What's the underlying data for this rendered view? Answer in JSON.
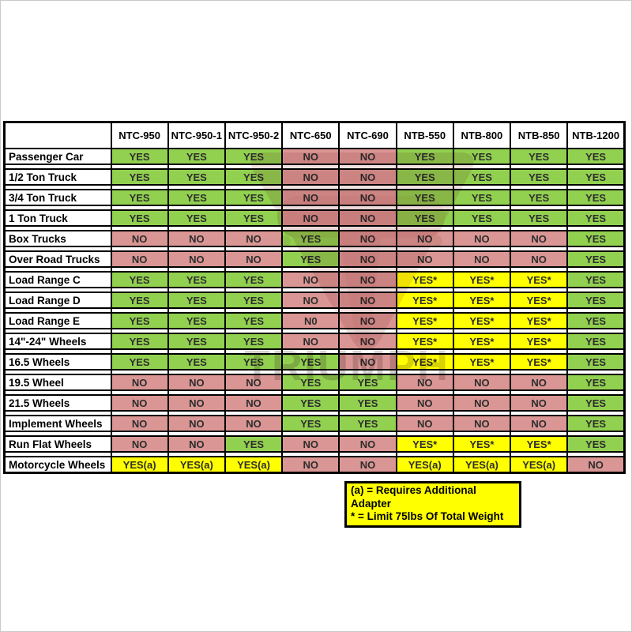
{
  "chart_data": {
    "type": "table",
    "title": "",
    "columns": [
      "NTC-950",
      "NTC-950-1",
      "NTC-950-2",
      "NTC-650",
      "NTC-690",
      "NTB-550",
      "NTB-800",
      "NTB-850",
      "NTB-1200"
    ],
    "rows": [
      {
        "label": "Passenger Car",
        "values": [
          "YES",
          "YES",
          "YES",
          "NO",
          "NO",
          "YES",
          "YES",
          "YES",
          "YES"
        ]
      },
      {
        "label": "1/2 Ton Truck",
        "values": [
          "YES",
          "YES",
          "YES",
          "NO",
          "NO",
          "YES",
          "YES",
          "YES",
          "YES"
        ]
      },
      {
        "label": "3/4 Ton Truck",
        "values": [
          "YES",
          "YES",
          "YES",
          "NO",
          "NO",
          "YES",
          "YES",
          "YES",
          "YES"
        ]
      },
      {
        "label": "1 Ton Truck",
        "values": [
          "YES",
          "YES",
          "YES",
          "NO",
          "NO",
          "YES",
          "YES",
          "YES",
          "YES"
        ]
      },
      {
        "label": "Box Trucks",
        "values": [
          "NO",
          "NO",
          "NO",
          "YES",
          "NO",
          "NO",
          "NO",
          "NO",
          "YES"
        ]
      },
      {
        "label": "Over Road Trucks",
        "values": [
          "NO",
          "NO",
          "NO",
          "YES",
          "NO",
          "NO",
          "NO",
          "NO",
          "YES"
        ]
      },
      {
        "label": "Load Range C",
        "values": [
          "YES",
          "YES",
          "YES",
          "NO",
          "NO",
          "YES*",
          "YES*",
          "YES*",
          "YES"
        ]
      },
      {
        "label": "Load Range D",
        "values": [
          "YES",
          "YES",
          "YES",
          "NO",
          "NO",
          "YES*",
          "YES*",
          "YES*",
          "YES"
        ]
      },
      {
        "label": "Load Range E",
        "values": [
          "YES",
          "YES",
          "YES",
          "N0",
          "NO",
          "YES*",
          "YES*",
          "YES*",
          "YES"
        ]
      },
      {
        "label": "14\"-24\" Wheels",
        "values": [
          "YES",
          "YES",
          "YES",
          "NO",
          "NO",
          "YES*",
          "YES*",
          "YES*",
          "YES"
        ]
      },
      {
        "label": "16.5 Wheels",
        "values": [
          "YES",
          "YES",
          "YES",
          "YES",
          "NO",
          "YES*",
          "YES*",
          "YES*",
          "YES"
        ]
      },
      {
        "label": "19.5 Wheel",
        "values": [
          "NO",
          "NO",
          "NO",
          "YES",
          "YES",
          "NO",
          "NO",
          "NO",
          "YES"
        ]
      },
      {
        "label": "21.5 Wheels",
        "values": [
          "NO",
          "NO",
          "NO",
          "YES",
          "YES",
          "NO",
          "NO",
          "NO",
          "YES"
        ]
      },
      {
        "label": "Implement Wheels",
        "values": [
          "NO",
          "NO",
          "NO",
          "YES",
          "YES",
          "NO",
          "NO",
          "NO",
          "YES"
        ]
      },
      {
        "label": "Run Flat Wheels",
        "values": [
          "NO",
          "NO",
          "YES",
          "NO",
          "NO",
          "YES*",
          "YES*",
          "YES*",
          "YES"
        ]
      },
      {
        "label": "Motorcycle Wheels",
        "values": [
          "YES(a)",
          "YES(a)",
          "YES(a)",
          "NO",
          "NO",
          "YES(a)",
          "YES(a)",
          "YES(a)",
          "NO"
        ]
      }
    ],
    "legend": [
      "(a) = Requires Additional Adapter",
      "* = Limit 75lbs Of Total Weight"
    ],
    "cell_colors": {
      "yes": "#92D050",
      "no": "#D99694",
      "conditional": "#FFFF00"
    },
    "layout_hints": {
      "grid": "black cell borders with white spacer strips between rows",
      "legend_position": "below table, under NTC-650 to NTB-800 columns",
      "watermark": "faded Triumph logo centered behind table"
    }
  },
  "watermark": {
    "text": "TRIUMPH"
  }
}
